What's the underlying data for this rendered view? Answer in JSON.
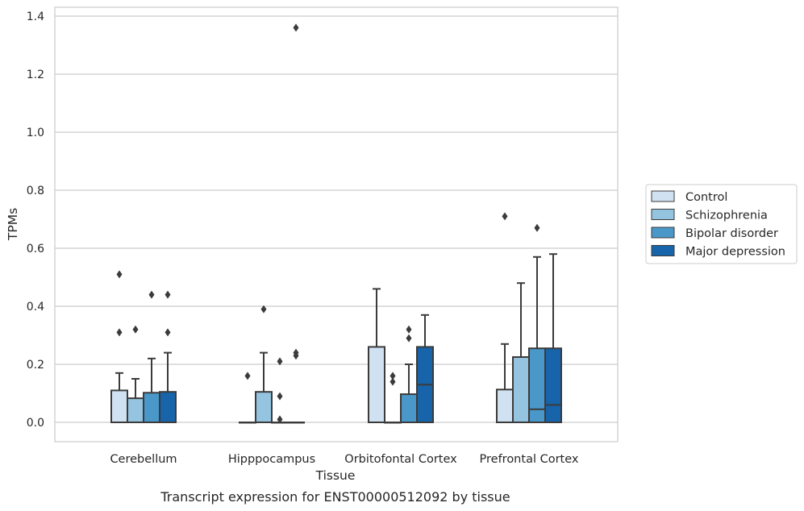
{
  "chart_data": {
    "type": "boxplot",
    "title": "",
    "caption": "Transcript expression for ENST00000512092 by tissue",
    "xlabel": "Tissue",
    "ylabel": "TPMs",
    "ylim": [
      -0.065,
      1.43
    ],
    "yticks": [
      0.0,
      0.2,
      0.4,
      0.6,
      0.8,
      1.0,
      1.2,
      1.4
    ],
    "ytick_labels": [
      "0.0",
      "0.2",
      "0.4",
      "0.6",
      "0.8",
      "1.0",
      "1.2",
      "1.4"
    ],
    "grid": "horizontal",
    "legend_position": "right",
    "categories": [
      "Cerebellum",
      "Hipppocampus",
      "Orbitofontal Cortex",
      "Prefrontal Cortex"
    ],
    "series": [
      {
        "name": "Control",
        "color": "#d0e1f2",
        "boxes": [
          {
            "min": 0.0,
            "q1": 0.0,
            "median": 0.0,
            "q3": 0.11,
            "max": 0.17,
            "outliers": [
              0.31,
              0.51
            ]
          },
          {
            "min": 0.0,
            "q1": 0.0,
            "median": 0.0,
            "q3": 0.0,
            "max": 0.0,
            "outliers": [
              0.16
            ]
          },
          {
            "min": 0.0,
            "q1": 0.0,
            "median": 0.0,
            "q3": 0.26,
            "max": 0.46,
            "outliers": []
          },
          {
            "min": 0.0,
            "q1": 0.0,
            "median": 0.0,
            "q3": 0.113,
            "max": 0.27,
            "outliers": [
              0.71
            ]
          }
        ]
      },
      {
        "name": "Schizophrenia",
        "color": "#94c4df",
        "boxes": [
          {
            "min": 0.0,
            "q1": 0.0,
            "median": 0.0,
            "q3": 0.083,
            "max": 0.15,
            "outliers": [
              0.32
            ]
          },
          {
            "min": 0.0,
            "q1": 0.0,
            "median": 0.0,
            "q3": 0.105,
            "max": 0.24,
            "outliers": [
              0.39
            ]
          },
          {
            "min": 0.0,
            "q1": 0.0,
            "median": 0.0,
            "q3": 0.0,
            "max": 0.0,
            "outliers": [
              0.14,
              0.16
            ]
          },
          {
            "min": 0.0,
            "q1": 0.0,
            "median": 0.0,
            "q3": 0.225,
            "max": 0.48,
            "outliers": []
          }
        ]
      },
      {
        "name": "Bipolar disorder",
        "color": "#4a98c9",
        "boxes": [
          {
            "min": 0.0,
            "q1": 0.0,
            "median": 0.0,
            "q3": 0.102,
            "max": 0.22,
            "outliers": [
              0.44
            ]
          },
          {
            "min": 0.0,
            "q1": 0.0,
            "median": 0.0,
            "q3": 0.0,
            "max": 0.0,
            "outliers": [
              0.01,
              0.09,
              0.21
            ]
          },
          {
            "min": 0.0,
            "q1": 0.0,
            "median": 0.0,
            "q3": 0.097,
            "max": 0.2,
            "outliers": [
              0.29,
              0.32
            ]
          },
          {
            "min": 0.0,
            "q1": 0.0,
            "median": 0.045,
            "q3": 0.255,
            "max": 0.57,
            "outliers": [
              0.67
            ]
          }
        ]
      },
      {
        "name": "Major depression",
        "color": "#1764ab",
        "boxes": [
          {
            "min": 0.0,
            "q1": 0.0,
            "median": 0.0,
            "q3": 0.105,
            "max": 0.24,
            "outliers": [
              0.31,
              0.44
            ]
          },
          {
            "min": 0.0,
            "q1": 0.0,
            "median": 0.0,
            "q3": 0.0,
            "max": 0.0,
            "outliers": [
              0.23,
              0.24,
              1.36
            ]
          },
          {
            "min": 0.0,
            "q1": 0.0,
            "median": 0.13,
            "q3": 0.26,
            "max": 0.37,
            "outliers": []
          },
          {
            "min": 0.0,
            "q1": 0.0,
            "median": 0.06,
            "q3": 0.255,
            "max": 0.58,
            "outliers": []
          }
        ]
      }
    ]
  }
}
